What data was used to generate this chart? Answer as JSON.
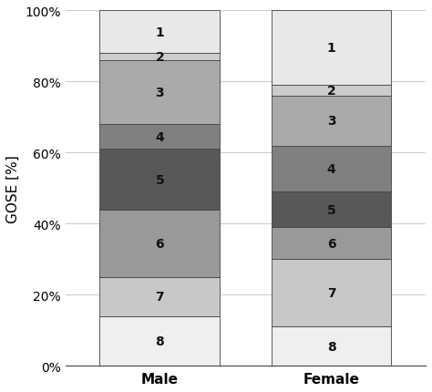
{
  "categories": [
    "Male",
    "Female"
  ],
  "ylabel": "GOSE [%]",
  "yticks": [
    0,
    20,
    40,
    60,
    80,
    100
  ],
  "ytick_labels": [
    "0%",
    "20%",
    "40%",
    "60%",
    "80%",
    "100%"
  ],
  "bar_width": 0.7,
  "background_color": "#ffffff",
  "grid_color": "#cccccc",
  "text_fontsize": 10,
  "label_fontsize": 11,
  "male_values": [
    14,
    11,
    19,
    17,
    7,
    18,
    2,
    12
  ],
  "female_values": [
    11,
    19,
    9,
    10,
    13,
    14,
    3,
    21
  ],
  "labels_bottom_to_top": [
    "8",
    "7",
    "6",
    "5",
    "4",
    "3",
    "2",
    "1"
  ],
  "colors_bottom_to_top": [
    "#efefef",
    "#c8c8c8",
    "#999999",
    "#585858",
    "#808080",
    "#aaaaaa",
    "#cccccc",
    "#e8e8e8"
  ],
  "edgecolor": "#444444",
  "linewidth": 0.6,
  "x_positions": [
    0,
    1
  ],
  "xlim": [
    -0.55,
    1.55
  ],
  "figsize": [
    4.74,
    4.31
  ],
  "dpi": 100
}
